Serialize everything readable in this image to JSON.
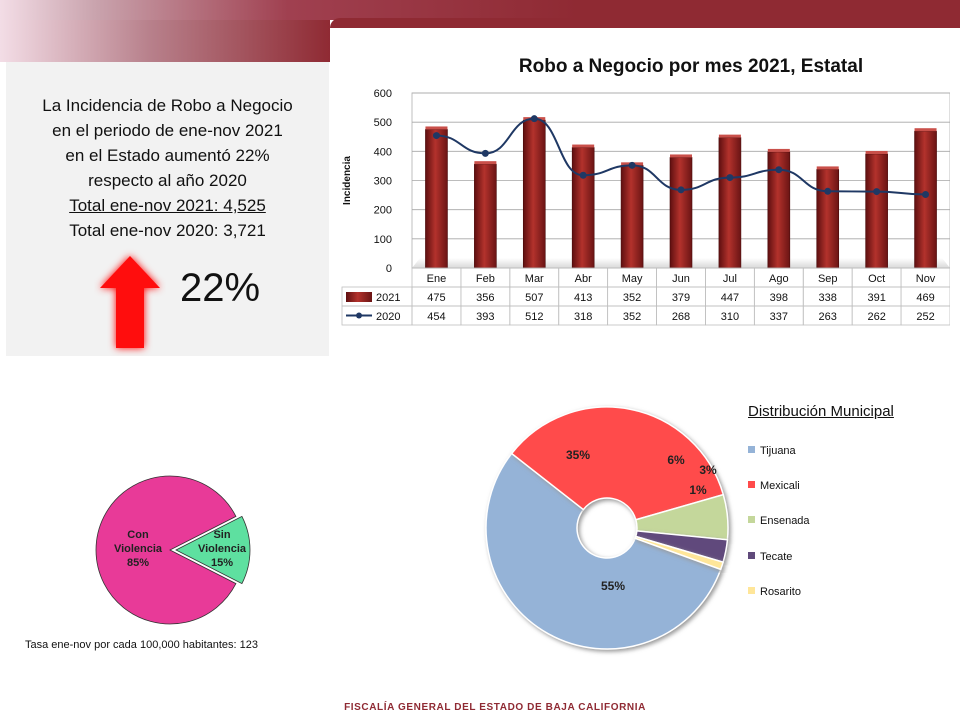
{
  "summary": {
    "line1": "La Incidencia de Robo a Negocio",
    "line2": "en el periodo de  ene-nov 2021",
    "line3": "en el Estado aumentó 22%",
    "line4": "respecto al año 2020",
    "total_2021": "Total ene-nov 2021:  4,525",
    "total_2020": "Total ene-nov 2020:  3,721",
    "big_percent": "22%"
  },
  "colors": {
    "bar": "#8f2120",
    "line": "#1f3864",
    "up_arrow": "#ff1010",
    "brand": "#8f2a33"
  },
  "chart_data": [
    {
      "type": "bar",
      "title": "Robo a Negocio por mes 2021, Estatal",
      "ylabel": "Incidencia",
      "xlabel": "",
      "ylim": [
        0,
        600
      ],
      "yticks": [
        0,
        100,
        200,
        300,
        400,
        500,
        600
      ],
      "categories": [
        "Ene",
        "Feb",
        "Mar",
        "Abr",
        "May",
        "Jun",
        "Jul",
        "Ago",
        "Sep",
        "Oct",
        "Nov"
      ],
      "series": [
        {
          "name": "2021",
          "kind": "bar",
          "values": [
            475,
            356,
            507,
            413,
            352,
            379,
            447,
            398,
            338,
            391,
            469
          ]
        },
        {
          "name": "2020",
          "kind": "line",
          "values": [
            454,
            393,
            512,
            318,
            352,
            268,
            310,
            337,
            263,
            262,
            252
          ]
        }
      ],
      "data_table": true
    },
    {
      "type": "pie",
      "title": "",
      "labels": [
        "Con Violencia",
        "Sin Violencia"
      ],
      "values": [
        85,
        15
      ],
      "value_labels": [
        "85%",
        "15%"
      ],
      "colors": [
        "#e83a98",
        "#5ee0a0"
      ]
    },
    {
      "type": "pie",
      "title": "Distribución Municipal",
      "labels": [
        "Tijuana",
        "Mexicali",
        "Ensenada",
        "Tecate",
        "Rosarito"
      ],
      "values": [
        55,
        35,
        6,
        3,
        1
      ],
      "value_labels": [
        "55%",
        "35%",
        "6%",
        "3%",
        "1%"
      ],
      "colors": [
        "#95b3d7",
        "#ff4b4b",
        "#c4d79b",
        "#604a7b",
        "#ffe699"
      ]
    }
  ],
  "rate_text": "Tasa  ene-nov por cada 100,000  habitantes: 123",
  "footer": "FISCALÍA GENERAL DEL ESTADO DE BAJA CALIFORNIA"
}
